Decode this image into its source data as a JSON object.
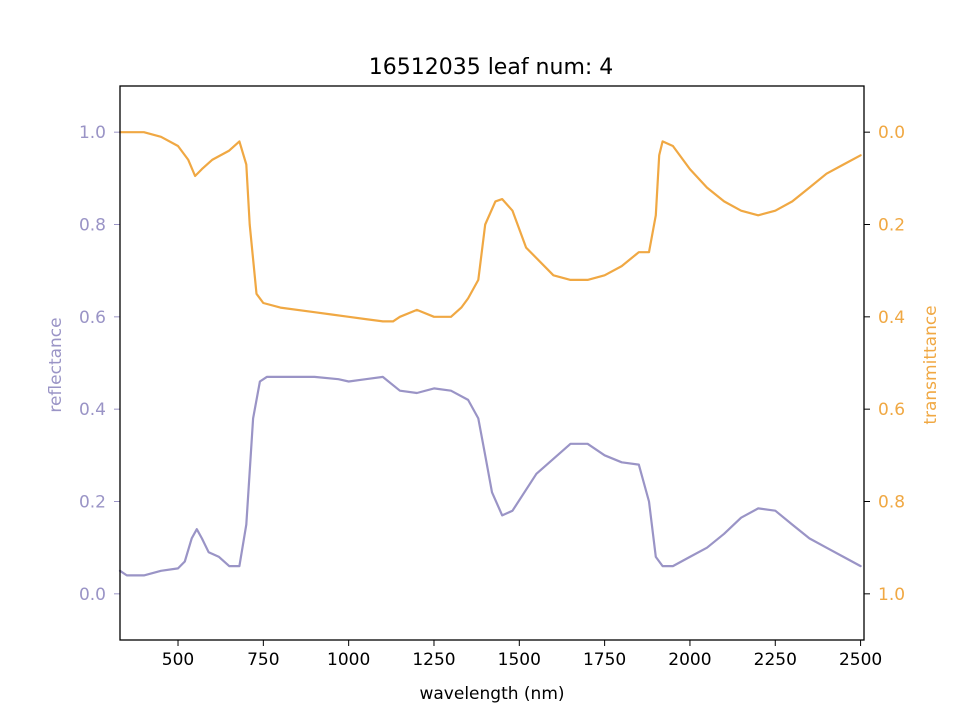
{
  "chart_data": {
    "type": "line",
    "title": "16512035 leaf num: 4",
    "xlabel": "wavelength (nm)",
    "ylabel_left": "reflectance",
    "ylabel_right": "transmittance",
    "xlim": [
      330,
      2510
    ],
    "ylim_left": [
      -0.1,
      1.1
    ],
    "ylim_right": [
      1.1,
      -0.1
    ],
    "right_axis_inverted": true,
    "x_ticks": [
      "500",
      "750",
      "1000",
      "1250",
      "1500",
      "1750",
      "2000",
      "2250",
      "2500"
    ],
    "y_ticks_left": [
      "0.0",
      "0.2",
      "0.4",
      "0.6",
      "0.8",
      "1.0"
    ],
    "y_ticks_right": [
      "0.0",
      "0.2",
      "0.4",
      "0.6",
      "0.8",
      "1.0"
    ],
    "grid": false,
    "colors": {
      "reflectance": "#9a94c6",
      "transmittance": "#f0a843",
      "axes": "#000000"
    },
    "series": [
      {
        "name": "reflectance",
        "axis": "left",
        "x": [
          330,
          350,
          400,
          450,
          500,
          520,
          540,
          555,
          570,
          590,
          620,
          650,
          680,
          700,
          720,
          740,
          760,
          800,
          900,
          970,
          1000,
          1050,
          1100,
          1150,
          1200,
          1250,
          1300,
          1350,
          1380,
          1400,
          1420,
          1450,
          1480,
          1550,
          1650,
          1700,
          1750,
          1800,
          1850,
          1880,
          1900,
          1920,
          1950,
          2000,
          2050,
          2100,
          2150,
          2200,
          2250,
          2300,
          2350,
          2400,
          2450,
          2500
        ],
        "y": [
          0.05,
          0.04,
          0.04,
          0.05,
          0.055,
          0.07,
          0.12,
          0.14,
          0.12,
          0.09,
          0.08,
          0.06,
          0.06,
          0.15,
          0.38,
          0.46,
          0.47,
          0.47,
          0.47,
          0.465,
          0.46,
          0.465,
          0.47,
          0.44,
          0.435,
          0.445,
          0.44,
          0.42,
          0.38,
          0.3,
          0.22,
          0.17,
          0.18,
          0.26,
          0.325,
          0.325,
          0.3,
          0.285,
          0.28,
          0.2,
          0.08,
          0.06,
          0.06,
          0.08,
          0.1,
          0.13,
          0.165,
          0.185,
          0.18,
          0.15,
          0.12,
          0.1,
          0.08,
          0.06
        ]
      },
      {
        "name": "transmittance",
        "axis": "right",
        "x": [
          330,
          350,
          400,
          450,
          500,
          530,
          550,
          570,
          600,
          650,
          680,
          700,
          710,
          730,
          750,
          800,
          900,
          950,
          1000,
          1050,
          1100,
          1130,
          1150,
          1200,
          1250,
          1300,
          1330,
          1350,
          1380,
          1400,
          1430,
          1450,
          1480,
          1520,
          1600,
          1650,
          1700,
          1750,
          1800,
          1850,
          1880,
          1900,
          1910,
          1920,
          1950,
          2000,
          2050,
          2100,
          2150,
          2200,
          2250,
          2300,
          2350,
          2400,
          2450,
          2500
        ],
        "y": [
          0.0,
          0.0,
          0.0,
          0.01,
          0.03,
          0.06,
          0.095,
          0.08,
          0.06,
          0.04,
          0.02,
          0.07,
          0.2,
          0.35,
          0.37,
          0.38,
          0.39,
          0.395,
          0.4,
          0.405,
          0.41,
          0.41,
          0.4,
          0.385,
          0.4,
          0.4,
          0.38,
          0.36,
          0.32,
          0.2,
          0.15,
          0.145,
          0.17,
          0.25,
          0.31,
          0.32,
          0.32,
          0.31,
          0.29,
          0.26,
          0.26,
          0.18,
          0.05,
          0.02,
          0.03,
          0.08,
          0.12,
          0.15,
          0.17,
          0.18,
          0.17,
          0.15,
          0.12,
          0.09,
          0.07,
          0.05
        ]
      }
    ]
  }
}
